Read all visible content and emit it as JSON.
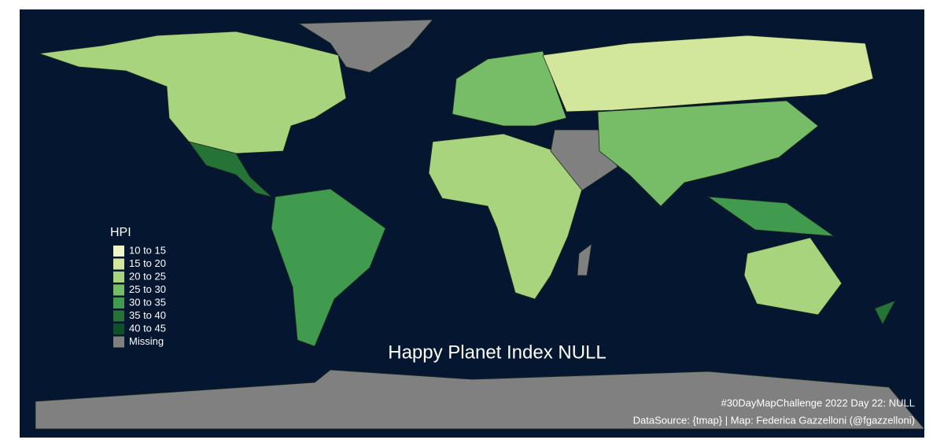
{
  "title": "Happy Planet Index NULL",
  "legend": {
    "title": "HPI",
    "items": [
      {
        "label": "10 to 15",
        "color": "#edf5c6"
      },
      {
        "label": "15 to 20",
        "color": "#d2e69c"
      },
      {
        "label": "20 to 25",
        "color": "#a9d47e"
      },
      {
        "label": "25 to 30",
        "color": "#77bd68"
      },
      {
        "label": "30 to 35",
        "color": "#419b4e"
      },
      {
        "label": "35 to 40",
        "color": "#267338"
      },
      {
        "label": "40 to 45",
        "color": "#0e5128"
      },
      {
        "label": "Missing",
        "color": "#808080"
      }
    ]
  },
  "caption": [
    "#30DayMapChallenge 2022 Day 22: NULL",
    "DataSource: {tmap} | Map: Federica Gazzelloni (@fgazzelloni)"
  ]
}
